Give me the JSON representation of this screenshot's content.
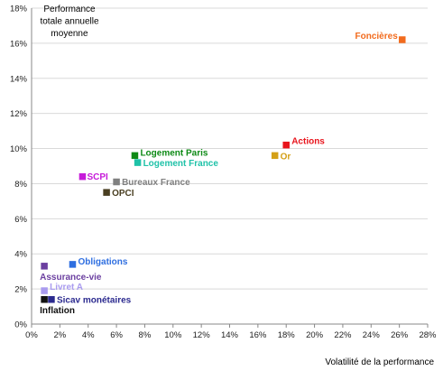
{
  "chart_data": {
    "type": "scatter",
    "ylabel_lines": [
      "Performance",
      "totale annuelle",
      "moyenne"
    ],
    "xlabel": "Volatilité de la performance",
    "xlim": [
      0,
      28
    ],
    "ylim": [
      0,
      18
    ],
    "x_unit": "%",
    "y_unit": "%",
    "grid": "horizontal",
    "x_ticks": [
      "0%",
      "2%",
      "4%",
      "6%",
      "8%",
      "10%",
      "12%",
      "14%",
      "16%",
      "18%",
      "20%",
      "22%",
      "24%",
      "26%",
      "28%"
    ],
    "y_ticks": [
      "0%",
      "2%",
      "4%",
      "6%",
      "8%",
      "10%",
      "12%",
      "14%",
      "16%",
      "18%"
    ],
    "points": [
      {
        "name": "Foncières",
        "x": 26.2,
        "y": 16.2,
        "color": "#F26B1D"
      },
      {
        "name": "Actions",
        "x": 18.0,
        "y": 10.2,
        "color": "#E8141C"
      },
      {
        "name": "Or",
        "x": 17.2,
        "y": 9.6,
        "color": "#D4A017"
      },
      {
        "name": "Logement Paris",
        "x": 7.3,
        "y": 9.6,
        "color": "#0E8A16"
      },
      {
        "name": "Logement France",
        "x": 7.5,
        "y": 9.2,
        "color": "#1FC2A8"
      },
      {
        "name": "SCPI",
        "x": 3.6,
        "y": 8.4,
        "color": "#C61AD9"
      },
      {
        "name": "Bureaux France",
        "x": 6.0,
        "y": 8.1,
        "color": "#808080"
      },
      {
        "name": "OPCI",
        "x": 5.3,
        "y": 7.5,
        "color": "#4A3F22"
      },
      {
        "name": "Obligations",
        "x": 2.9,
        "y": 3.4,
        "color": "#2E6EE0"
      },
      {
        "name": "Assurance-vie",
        "x": 0.9,
        "y": 3.3,
        "color": "#6B3FA0"
      },
      {
        "name": "Livret A",
        "x": 0.9,
        "y": 1.9,
        "color": "#A99BEF"
      },
      {
        "name": "Sicav monétaires",
        "x": 1.4,
        "y": 1.4,
        "color": "#2B2A8F"
      },
      {
        "name": "Inflation",
        "x": 0.9,
        "y": 1.4,
        "color": "#111111"
      }
    ]
  }
}
